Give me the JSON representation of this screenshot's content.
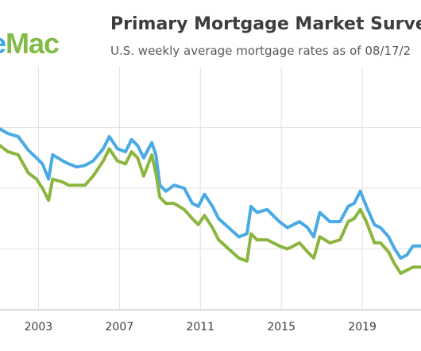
{
  "header": {
    "logo": {
      "part1": "e",
      "part2": "Mac"
    },
    "title": "Primary Mortgage Market Survey",
    "title_mark": "®",
    "subtitle": "U.S. weekly average mortgage rates as of 08/17/2"
  },
  "chart_data": {
    "type": "line",
    "title": "Primary Mortgage Market Survey®",
    "subtitle": "U.S. weekly average mortgage rates as of 08/17/2",
    "xlabel": "",
    "ylabel": "",
    "x_ticks": [
      "2003",
      "2007",
      "2011",
      "2015",
      "2019"
    ],
    "x_tick_values": [
      2003,
      2007,
      2011,
      2015,
      2019
    ],
    "xlim": [
      2001.1,
      2021.9
    ],
    "ylim": [
      1,
      9
    ],
    "gridlines": [
      3,
      5,
      7
    ],
    "grid": true,
    "series": [
      {
        "color": "#4aaae4",
        "x": [
          2001.1,
          2001.5,
          2002.0,
          2002.5,
          2002.9,
          2003.2,
          2003.5,
          2003.7,
          2004.2,
          2004.5,
          2004.9,
          2005.3,
          2005.7,
          2006.2,
          2006.5,
          2006.9,
          2007.3,
          2007.6,
          2007.9,
          2008.2,
          2008.6,
          2008.8,
          2009.0,
          2009.3,
          2009.7,
          2010.2,
          2010.6,
          2010.9,
          2011.2,
          2011.6,
          2011.9,
          2012.4,
          2012.9,
          2013.3,
          2013.5,
          2013.8,
          2014.3,
          2014.9,
          2015.3,
          2015.9,
          2016.3,
          2016.6,
          2016.9,
          2017.4,
          2017.9,
          2018.3,
          2018.6,
          2018.9,
          2019.2,
          2019.6,
          2019.9,
          2020.3,
          2020.6,
          2020.9,
          2021.2,
          2021.5,
          2021.9
        ],
        "y": [
          6.95,
          6.8,
          6.7,
          6.25,
          6.0,
          5.8,
          5.3,
          6.1,
          5.9,
          5.8,
          5.7,
          5.75,
          5.9,
          6.3,
          6.7,
          6.3,
          6.2,
          6.6,
          6.4,
          6.0,
          6.5,
          6.1,
          5.1,
          4.9,
          5.1,
          5.0,
          4.5,
          4.4,
          4.8,
          4.4,
          4.0,
          3.7,
          3.4,
          3.5,
          4.4,
          4.2,
          4.3,
          3.9,
          3.7,
          3.9,
          3.7,
          3.4,
          4.2,
          3.9,
          3.9,
          4.4,
          4.5,
          4.9,
          4.4,
          3.8,
          3.7,
          3.4,
          3.0,
          2.7,
          2.8,
          3.1,
          3.1
        ]
      },
      {
        "color": "#8cb53f",
        "x": [
          2001.1,
          2001.5,
          2002.0,
          2002.5,
          2002.9,
          2003.2,
          2003.5,
          2003.7,
          2004.2,
          2004.5,
          2004.9,
          2005.3,
          2005.7,
          2006.2,
          2006.5,
          2006.9,
          2007.3,
          2007.6,
          2007.9,
          2008.2,
          2008.6,
          2008.8,
          2009.0,
          2009.3,
          2009.7,
          2010.2,
          2010.6,
          2010.9,
          2011.2,
          2011.6,
          2011.9,
          2012.4,
          2012.9,
          2013.3,
          2013.5,
          2013.8,
          2014.3,
          2014.9,
          2015.3,
          2015.9,
          2016.3,
          2016.6,
          2016.9,
          2017.4,
          2017.9,
          2018.3,
          2018.6,
          2018.9,
          2019.2,
          2019.6,
          2019.9,
          2020.3,
          2020.6,
          2020.9,
          2021.2,
          2021.5,
          2021.9
        ],
        "y": [
          6.4,
          6.2,
          6.1,
          5.5,
          5.3,
          5.0,
          4.6,
          5.3,
          5.2,
          5.1,
          5.1,
          5.1,
          5.4,
          5.9,
          6.3,
          5.9,
          5.8,
          6.2,
          6.0,
          5.4,
          6.1,
          5.5,
          4.7,
          4.5,
          4.5,
          4.3,
          4.0,
          3.8,
          4.1,
          3.7,
          3.3,
          3.0,
          2.7,
          2.6,
          3.5,
          3.3,
          3.3,
          3.1,
          3.0,
          3.2,
          2.9,
          2.7,
          3.4,
          3.2,
          3.3,
          3.9,
          4.0,
          4.3,
          3.9,
          3.2,
          3.2,
          2.9,
          2.5,
          2.2,
          2.3,
          2.4,
          2.4
        ]
      }
    ]
  }
}
